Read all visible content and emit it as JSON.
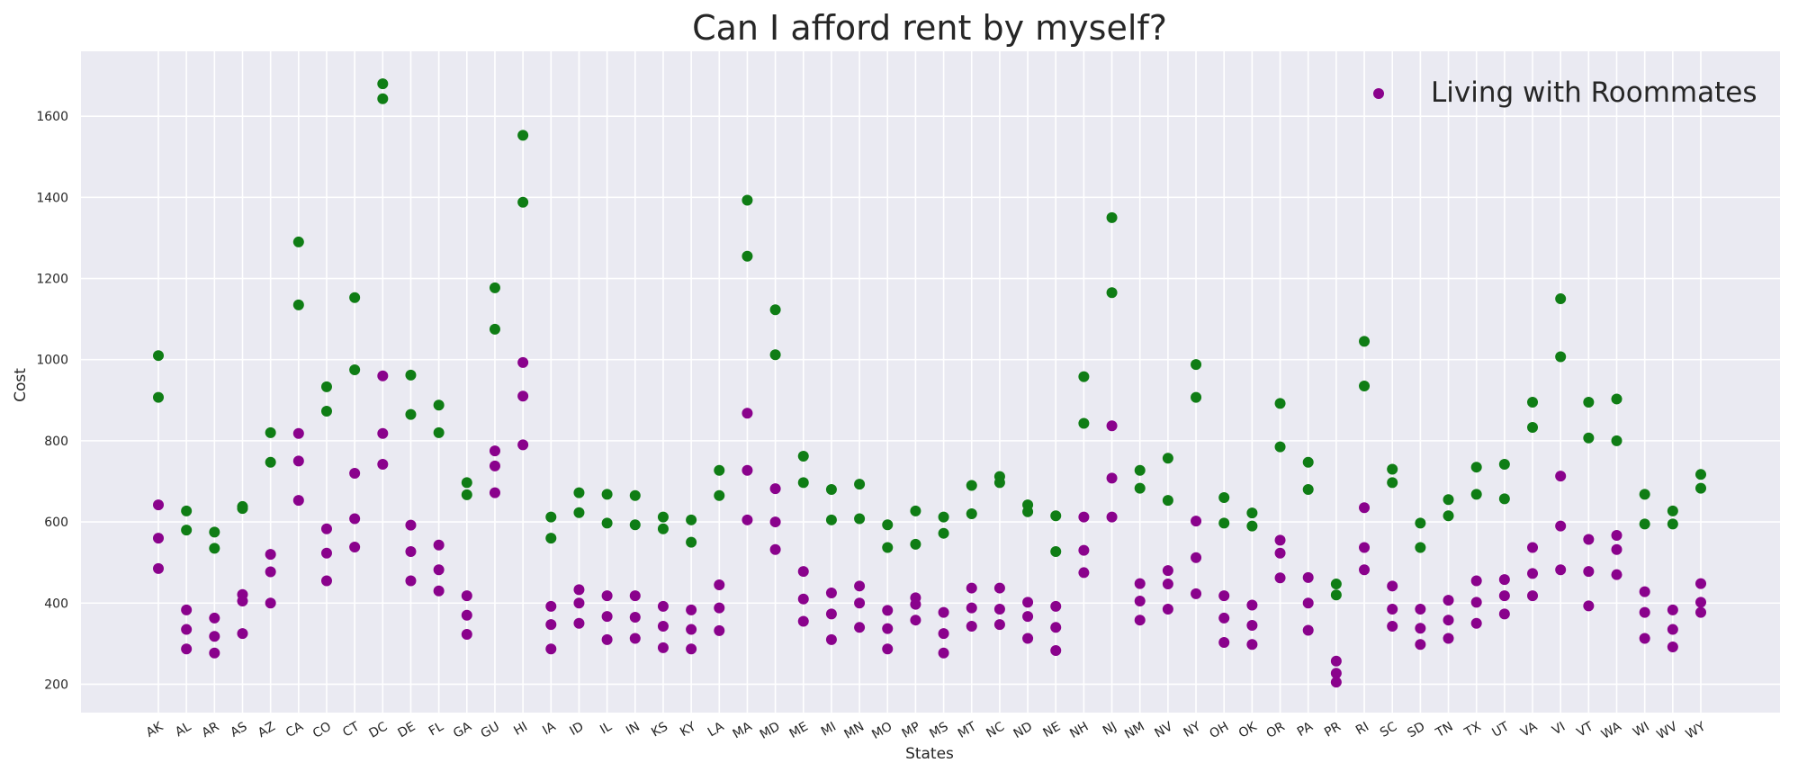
{
  "chart_data": {
    "type": "scatter",
    "title": "Can I afford rent by myself?",
    "xlabel": "States",
    "ylabel": "Cost",
    "ylim": [
      130,
      1760
    ],
    "yticks": [
      200,
      400,
      600,
      800,
      1000,
      1200,
      1400,
      1600
    ],
    "grid": true,
    "legend_position": "top-right",
    "categories": [
      "AK",
      "AL",
      "AR",
      "AS",
      "AZ",
      "CA",
      "CO",
      "CT",
      "DC",
      "DE",
      "FL",
      "GA",
      "GU",
      "HI",
      "IA",
      "ID",
      "IL",
      "IN",
      "KS",
      "KY",
      "LA",
      "MA",
      "MD",
      "ME",
      "MI",
      "MN",
      "MO",
      "MP",
      "MS",
      "MT",
      "NC",
      "ND",
      "NE",
      "NH",
      "NJ",
      "NM",
      "NV",
      "NY",
      "OH",
      "OK",
      "OR",
      "PA",
      "PR",
      "RI",
      "SC",
      "SD",
      "TN",
      "TX",
      "UT",
      "VA",
      "VI",
      "VT",
      "WA",
      "WI",
      "WV",
      "WY"
    ],
    "series": [
      {
        "name": "",
        "color": "#0f7d15",
        "values": [
          [
            1010,
            907
          ],
          [
            627,
            580
          ],
          [
            575,
            535
          ],
          [
            638,
            633
          ],
          [
            820,
            747
          ],
          [
            1290,
            1135
          ],
          [
            933,
            873
          ],
          [
            1153,
            975
          ],
          [
            1680,
            1643
          ],
          [
            962,
            865
          ],
          [
            888,
            820
          ],
          [
            697,
            667
          ],
          [
            1177,
            1075
          ],
          [
            1553,
            1388
          ],
          [
            612,
            560
          ],
          [
            672,
            623
          ],
          [
            668,
            597
          ],
          [
            665,
            593
          ],
          [
            612,
            583
          ],
          [
            605,
            550
          ],
          [
            727,
            665
          ],
          [
            1393,
            1255
          ],
          [
            1123,
            1012
          ],
          [
            762,
            697
          ],
          [
            680,
            605
          ],
          [
            693,
            608
          ],
          [
            593,
            537
          ],
          [
            627,
            545
          ],
          [
            612,
            572
          ],
          [
            690,
            620
          ],
          [
            712,
            697
          ],
          [
            642,
            625
          ],
          [
            615,
            527
          ],
          [
            958,
            843
          ],
          [
            1350,
            1165
          ],
          [
            727,
            683
          ],
          [
            757,
            653
          ],
          [
            988,
            907
          ],
          [
            660,
            597
          ],
          [
            622,
            590
          ],
          [
            892,
            785
          ],
          [
            747,
            680
          ],
          [
            447,
            420
          ],
          [
            1045,
            935
          ],
          [
            730,
            697
          ],
          [
            597,
            537
          ],
          [
            655,
            615
          ],
          [
            735,
            668
          ],
          [
            742,
            657
          ],
          [
            895,
            833
          ],
          [
            1150,
            1007
          ],
          [
            895,
            807
          ],
          [
            903,
            800
          ],
          [
            668,
            595
          ],
          [
            627,
            595
          ],
          [
            717,
            683
          ]
        ]
      },
      {
        "name": "Living with Roommates",
        "color": "#8a028c",
        "values": [
          [
            642,
            560,
            485
          ],
          [
            383,
            335,
            287
          ],
          [
            363,
            318,
            277
          ],
          [
            421,
            405,
            325
          ],
          [
            520,
            477,
            400
          ],
          [
            818,
            750,
            653
          ],
          [
            583,
            523,
            455
          ],
          [
            720,
            608,
            538
          ],
          [
            960,
            818,
            742
          ],
          [
            592,
            527,
            455
          ],
          [
            543,
            482,
            430
          ],
          [
            418,
            370,
            323
          ],
          [
            775,
            738,
            672
          ],
          [
            993,
            910,
            790
          ],
          [
            392,
            347,
            287
          ],
          [
            433,
            400,
            350
          ],
          [
            418,
            367,
            310
          ],
          [
            418,
            365,
            313
          ],
          [
            392,
            343,
            290
          ],
          [
            383,
            335,
            287
          ],
          [
            445,
            388,
            332
          ],
          [
            868,
            727,
            605
          ],
          [
            682,
            600,
            532
          ],
          [
            478,
            410,
            355
          ],
          [
            425,
            373,
            310
          ],
          [
            442,
            400,
            340
          ],
          [
            382,
            337,
            287
          ],
          [
            413,
            397,
            358
          ],
          [
            377,
            325,
            277
          ],
          [
            437,
            388,
            343
          ],
          [
            437,
            385,
            347
          ],
          [
            402,
            367,
            313
          ],
          [
            392,
            340,
            283
          ],
          [
            612,
            530,
            475
          ],
          [
            837,
            708,
            612
          ],
          [
            448,
            405,
            358
          ],
          [
            480,
            447,
            385
          ],
          [
            602,
            512,
            423
          ],
          [
            418,
            363,
            303
          ],
          [
            395,
            345,
            298
          ],
          [
            555,
            523,
            462
          ],
          [
            463,
            400,
            333
          ],
          [
            257,
            227,
            205
          ],
          [
            635,
            537,
            482
          ],
          [
            442,
            385,
            343
          ],
          [
            385,
            338,
            298
          ],
          [
            407,
            358,
            313
          ],
          [
            455,
            402,
            350
          ],
          [
            458,
            418,
            373
          ],
          [
            537,
            473,
            418
          ],
          [
            713,
            590,
            482
          ],
          [
            557,
            478,
            393
          ],
          [
            567,
            532,
            470
          ],
          [
            428,
            377,
            313
          ],
          [
            383,
            335,
            292
          ],
          [
            448,
            402,
            377
          ]
        ]
      }
    ]
  }
}
